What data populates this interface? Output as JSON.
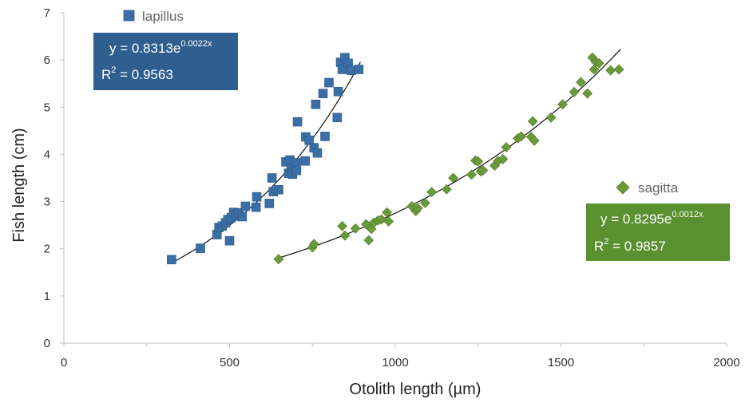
{
  "chart_data": {
    "type": "scatter",
    "xlabel": "Otolith length (µm)",
    "ylabel": "Fish length (cm)",
    "xlim": [
      0,
      2000
    ],
    "ylim": [
      0,
      7
    ],
    "x_ticks": [
      "0",
      "500",
      "1000",
      "1500",
      "2000"
    ],
    "y_ticks": [
      "0",
      "1",
      "2",
      "3",
      "4",
      "5",
      "6",
      "7"
    ],
    "grid": false,
    "series": [
      {
        "name": "lapillus",
        "marker": "square",
        "color": "#3a6ea5",
        "trendline": {
          "type": "exponential",
          "a": 0.8313,
          "b": 0.0022,
          "x_range": [
            320,
            895
          ]
        },
        "equation": {
          "prefix": "y = 0.8313e",
          "exponent": "0.0022x",
          "r2_prefix": "R",
          "r2_sup": "2",
          "r2_value": " = 0.9563"
        },
        "box_color": "#2e5f8f",
        "points": [
          [
            325,
            1.77
          ],
          [
            412,
            2.01
          ],
          [
            462,
            2.3
          ],
          [
            468,
            2.45
          ],
          [
            478,
            2.48
          ],
          [
            488,
            2.55
          ],
          [
            495,
            2.62
          ],
          [
            500,
            2.17
          ],
          [
            505,
            2.66
          ],
          [
            512,
            2.77
          ],
          [
            518,
            2.7
          ],
          [
            528,
            2.76
          ],
          [
            538,
            2.68
          ],
          [
            548,
            2.9
          ],
          [
            580,
            2.88
          ],
          [
            582,
            3.1
          ],
          [
            620,
            2.96
          ],
          [
            628,
            3.5
          ],
          [
            632,
            3.21
          ],
          [
            648,
            3.25
          ],
          [
            670,
            3.84
          ],
          [
            678,
            3.6
          ],
          [
            682,
            3.88
          ],
          [
            686,
            3.7
          ],
          [
            690,
            3.58
          ],
          [
            700,
            3.82
          ],
          [
            702,
            3.66
          ],
          [
            705,
            4.69
          ],
          [
            728,
            3.86
          ],
          [
            730,
            4.37
          ],
          [
            740,
            4.3
          ],
          [
            755,
            4.14
          ],
          [
            760,
            5.06
          ],
          [
            765,
            4.03
          ],
          [
            782,
            5.29
          ],
          [
            788,
            4.38
          ],
          [
            800,
            5.52
          ],
          [
            825,
            4.78
          ],
          [
            828,
            5.33
          ],
          [
            835,
            5.95
          ],
          [
            840,
            5.8
          ],
          [
            848,
            6.05
          ],
          [
            858,
            5.93
          ],
          [
            868,
            5.78
          ],
          [
            890,
            5.8
          ]
        ]
      },
      {
        "name": "sagitta",
        "marker": "diamond",
        "color": "#6a9a3a",
        "trendline": {
          "type": "exponential",
          "a": 0.8295,
          "b": 0.0012,
          "x_range": [
            645,
            1680
          ]
        },
        "equation": {
          "prefix": "y = 0.8295e",
          "exponent": "0.0012x",
          "r2_prefix": "R",
          "r2_sup": "2",
          "r2_value": " = 0.9857"
        },
        "box_color": "#5a9030",
        "points": [
          [
            648,
            1.78
          ],
          [
            750,
            2.03
          ],
          [
            755,
            2.1
          ],
          [
            840,
            2.48
          ],
          [
            848,
            2.28
          ],
          [
            880,
            2.43
          ],
          [
            912,
            2.52
          ],
          [
            920,
            2.18
          ],
          [
            928,
            2.42
          ],
          [
            935,
            2.55
          ],
          [
            948,
            2.6
          ],
          [
            958,
            2.62
          ],
          [
            975,
            2.77
          ],
          [
            980,
            2.58
          ],
          [
            1050,
            2.9
          ],
          [
            1062,
            2.8
          ],
          [
            1068,
            2.86
          ],
          [
            1090,
            2.97
          ],
          [
            1110,
            3.2
          ],
          [
            1155,
            3.26
          ],
          [
            1175,
            3.5
          ],
          [
            1230,
            3.57
          ],
          [
            1242,
            3.87
          ],
          [
            1250,
            3.85
          ],
          [
            1258,
            3.64
          ],
          [
            1265,
            3.66
          ],
          [
            1300,
            3.76
          ],
          [
            1310,
            3.86
          ],
          [
            1325,
            3.9
          ],
          [
            1335,
            4.15
          ],
          [
            1370,
            4.34
          ],
          [
            1380,
            4.38
          ],
          [
            1410,
            4.37
          ],
          [
            1415,
            4.7
          ],
          [
            1420,
            4.29
          ],
          [
            1470,
            4.78
          ],
          [
            1505,
            5.06
          ],
          [
            1540,
            5.32
          ],
          [
            1560,
            5.53
          ],
          [
            1580,
            5.29
          ],
          [
            1595,
            6.05
          ],
          [
            1600,
            5.8
          ],
          [
            1605,
            5.96
          ],
          [
            1615,
            5.93
          ],
          [
            1650,
            5.78
          ],
          [
            1675,
            5.8
          ]
        ]
      }
    ]
  }
}
